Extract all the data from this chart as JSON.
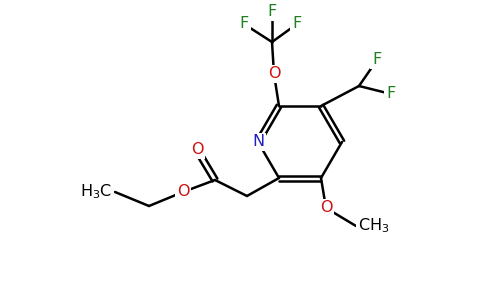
{
  "background_color": "#ffffff",
  "atom_colors": {
    "N": "#2020bb",
    "O": "#cc1111",
    "F": "#208020",
    "C": "#000000"
  },
  "figsize": [
    4.84,
    3.0
  ],
  "dpi": 100,
  "lw": 1.8,
  "fontsize": 11.5
}
